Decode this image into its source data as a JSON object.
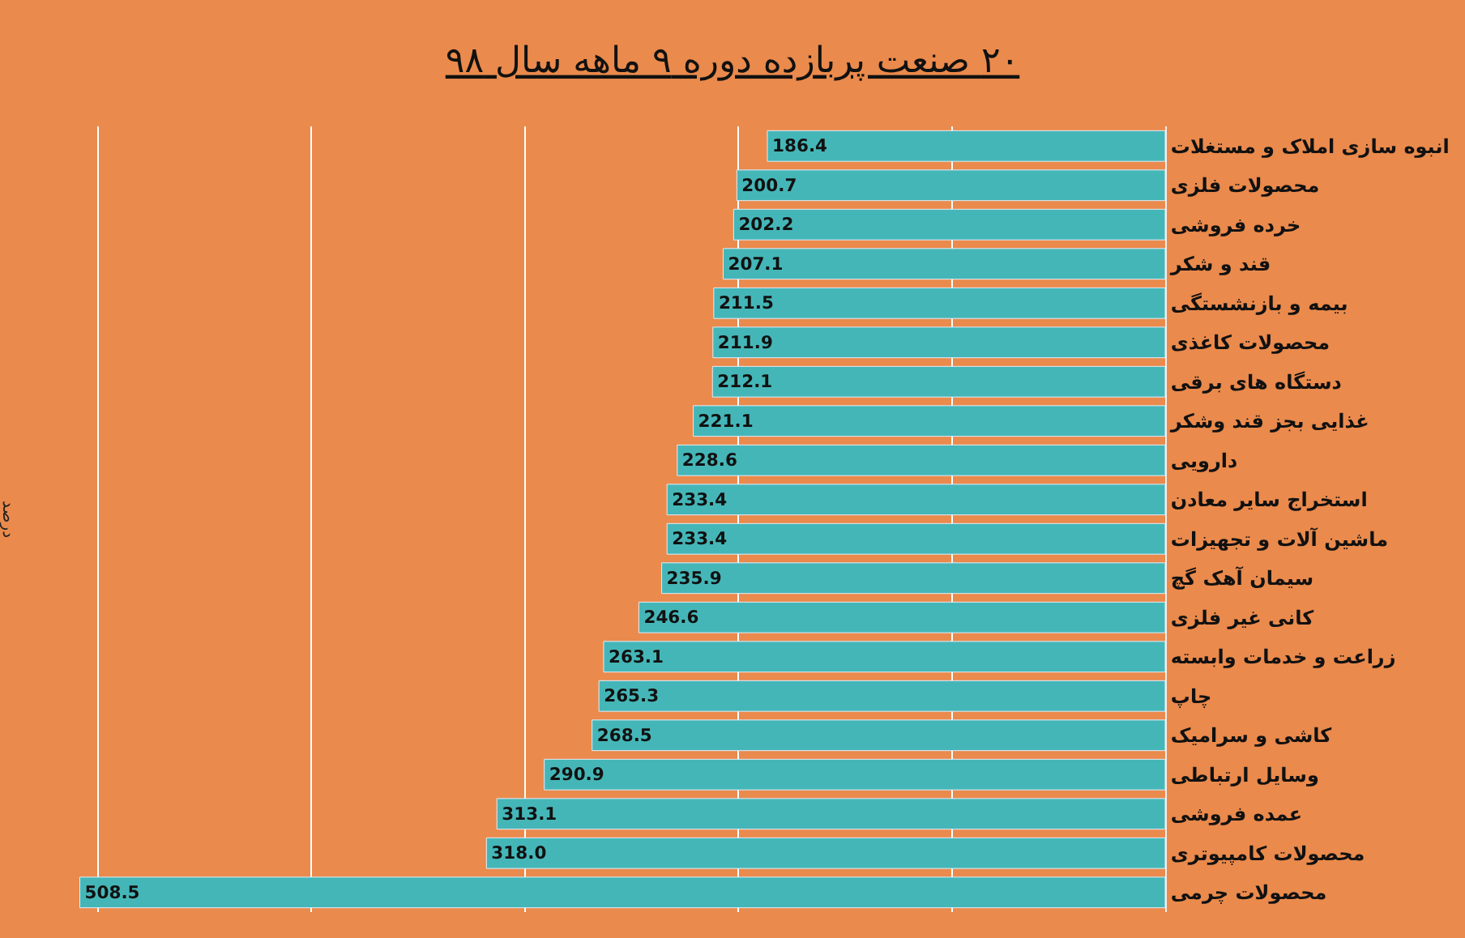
{
  "chart_data": {
    "type": "bar",
    "orientation": "horizontal",
    "title": "۲۰ صنعت پربازده دوره ۹ ماهه سال ۹۸",
    "categories": [
      "انبوه سازی املاک و مستغلات",
      "محصولات فلزی",
      "خرده فروشی",
      "قند و شکر",
      "بیمه و بازنشستگی",
      "محصولات کاغذی",
      "دستگاه های برقی",
      "غذایی بجز قند وشکر",
      "دارویی",
      "استخراج سایر معادن",
      "ماشین آلات و تجهیزات",
      "سیمان آهک گچ",
      "کانی غیر فلزی",
      "زراعت و خدمات وابسته",
      "چاپ",
      "کاشی و سرامیک",
      "وسایل ارتباطی",
      "عمده فروشی",
      "محصولات کامپیوتری",
      "محصولات چرمی"
    ],
    "values": [
      186.4,
      200.7,
      202.2,
      207.1,
      211.5,
      211.9,
      212.1,
      221.1,
      228.6,
      233.4,
      233.4,
      235.9,
      246.6,
      263.1,
      265.3,
      268.5,
      290.9,
      313.1,
      318.0,
      508.5
    ],
    "value_labels": [
      "186.4",
      "200.7",
      "202.2",
      "207.1",
      "211.5",
      "211.9",
      "212.1",
      "221.1",
      "228.6",
      "233.4",
      "233.4",
      "235.9",
      "246.6",
      "263.1",
      "265.3",
      "268.5",
      "290.9",
      "313.1",
      "318.0",
      "508.5"
    ],
    "color": "#45b6b8",
    "grid": "x",
    "tick_labels": "y",
    "annotations": [
      "درصد"
    ]
  }
}
